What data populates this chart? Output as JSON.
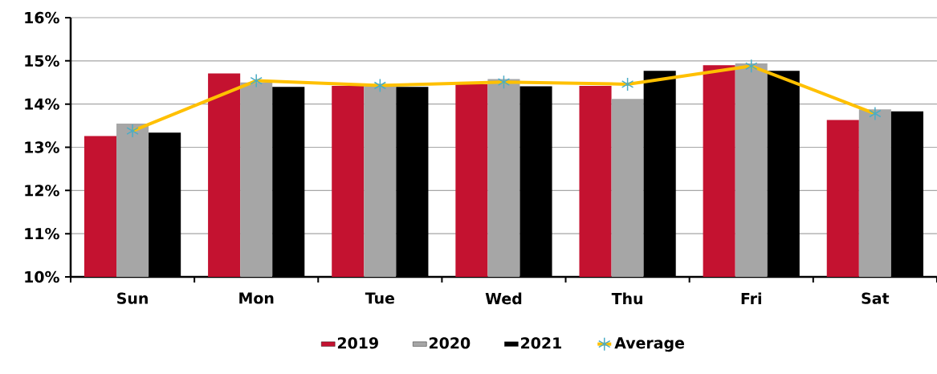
{
  "chart_data": {
    "type": "bar",
    "categories": [
      "Sun",
      "Mon",
      "Tue",
      "Wed",
      "Thu",
      "Fri",
      "Sat"
    ],
    "series": [
      {
        "name": "2019",
        "color": "#c41230",
        "values": [
          13.26,
          14.71,
          14.42,
          14.46,
          14.42,
          14.9,
          13.63
        ]
      },
      {
        "name": "2020",
        "color": "#a6a6a6",
        "values": [
          13.55,
          14.5,
          14.42,
          14.58,
          14.12,
          14.94,
          13.88
        ]
      },
      {
        "name": "2021",
        "color": "#000000",
        "values": [
          13.34,
          14.4,
          14.4,
          14.41,
          14.77,
          14.77,
          13.83
        ]
      },
      {
        "name": "Average",
        "type": "line",
        "color": "#ffc000",
        "marker": "cross",
        "values": [
          13.38,
          14.54,
          14.43,
          14.51,
          14.46,
          14.88,
          13.78
        ]
      }
    ],
    "ylim": [
      10,
      16
    ],
    "yticks": [
      {
        "value": 10,
        "label": "10%"
      },
      {
        "value": 11,
        "label": "11%"
      },
      {
        "value": 12,
        "label": "12%"
      },
      {
        "value": 13,
        "label": "13%"
      },
      {
        "value": 14,
        "label": "14%"
      },
      {
        "value": 15,
        "label": "15%"
      },
      {
        "value": 16,
        "label": "16%"
      }
    ],
    "grid": "y",
    "legend": "bottom"
  }
}
